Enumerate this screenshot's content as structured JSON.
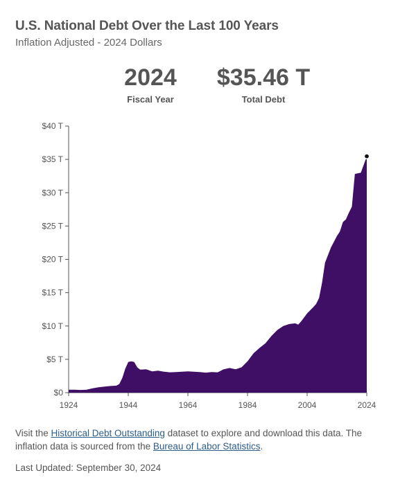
{
  "header": {
    "title": "U.S. National Debt Over the Last 100 Years",
    "subtitle": "Inflation Adjusted - 2024 Dollars"
  },
  "stats": {
    "year_value": "2024",
    "year_label": "Fiscal Year",
    "debt_value": "$35.46 T",
    "debt_label": "Total Debt"
  },
  "colors": {
    "area": "#3f0f66",
    "axis": "#555555",
    "marker": "#111111"
  },
  "chart_data": {
    "type": "area",
    "title": "U.S. National Debt Over the Last 100 Years",
    "subtitle": "Inflation Adjusted - 2024 Dollars",
    "xlabel": "",
    "ylabel": "",
    "xlim": [
      1924,
      2024
    ],
    "ylim": [
      0,
      40
    ],
    "x_ticks": [
      1924,
      1944,
      1964,
      1984,
      2004,
      2024
    ],
    "y_ticks": [
      0,
      5,
      10,
      15,
      20,
      25,
      30,
      35,
      40
    ],
    "y_tick_labels": [
      "$0",
      "$5 T",
      "$10 T",
      "$15 T",
      "$20 T",
      "$25 T",
      "$30 T",
      "$35 T",
      "$40 T"
    ],
    "grid": false,
    "series": [
      {
        "unit": "trillions of 2024 dollars",
        "points": [
          [
            1924,
            0.45
          ],
          [
            1926,
            0.45
          ],
          [
            1928,
            0.4
          ],
          [
            1930,
            0.45
          ],
          [
            1932,
            0.65
          ],
          [
            1934,
            0.8
          ],
          [
            1936,
            0.9
          ],
          [
            1938,
            1.0
          ],
          [
            1940,
            1.05
          ],
          [
            1941,
            1.3
          ],
          [
            1942,
            2.2
          ],
          [
            1943,
            3.6
          ],
          [
            1944,
            4.6
          ],
          [
            1945,
            4.7
          ],
          [
            1946,
            4.6
          ],
          [
            1947,
            3.8
          ],
          [
            1948,
            3.45
          ],
          [
            1950,
            3.5
          ],
          [
            1952,
            3.2
          ],
          [
            1954,
            3.3
          ],
          [
            1956,
            3.15
          ],
          [
            1958,
            3.05
          ],
          [
            1960,
            3.1
          ],
          [
            1962,
            3.15
          ],
          [
            1964,
            3.2
          ],
          [
            1966,
            3.15
          ],
          [
            1968,
            3.1
          ],
          [
            1970,
            3.0
          ],
          [
            1972,
            3.1
          ],
          [
            1974,
            3.05
          ],
          [
            1976,
            3.5
          ],
          [
            1978,
            3.7
          ],
          [
            1980,
            3.5
          ],
          [
            1982,
            3.8
          ],
          [
            1984,
            4.7
          ],
          [
            1986,
            5.9
          ],
          [
            1988,
            6.7
          ],
          [
            1990,
            7.4
          ],
          [
            1992,
            8.5
          ],
          [
            1994,
            9.4
          ],
          [
            1996,
            10.0
          ],
          [
            1998,
            10.3
          ],
          [
            2000,
            10.4
          ],
          [
            2001,
            10.2
          ],
          [
            2002,
            10.7
          ],
          [
            2004,
            11.9
          ],
          [
            2006,
            12.8
          ],
          [
            2007,
            13.3
          ],
          [
            2008,
            14.2
          ],
          [
            2009,
            16.5
          ],
          [
            2010,
            19.5
          ],
          [
            2012,
            21.8
          ],
          [
            2014,
            23.5
          ],
          [
            2015,
            24.2
          ],
          [
            2016,
            25.6
          ],
          [
            2017,
            26.0
          ],
          [
            2018,
            27.0
          ],
          [
            2019,
            27.9
          ],
          [
            2020,
            32.8
          ],
          [
            2021,
            32.9
          ],
          [
            2022,
            33.0
          ],
          [
            2023,
            34.2
          ],
          [
            2024,
            35.46
          ]
        ]
      }
    ],
    "highlight": {
      "x": 2024,
      "y": 35.46
    }
  },
  "footer": {
    "note_pre": "Visit the ",
    "link1": "Historical Debt Outstanding",
    "note_mid": " dataset to explore and download this data. The inflation data is sourced from the ",
    "link2": "Bureau of Labor Statistics",
    "note_post": ".",
    "updated": "Last Updated: September 30, 2024"
  }
}
